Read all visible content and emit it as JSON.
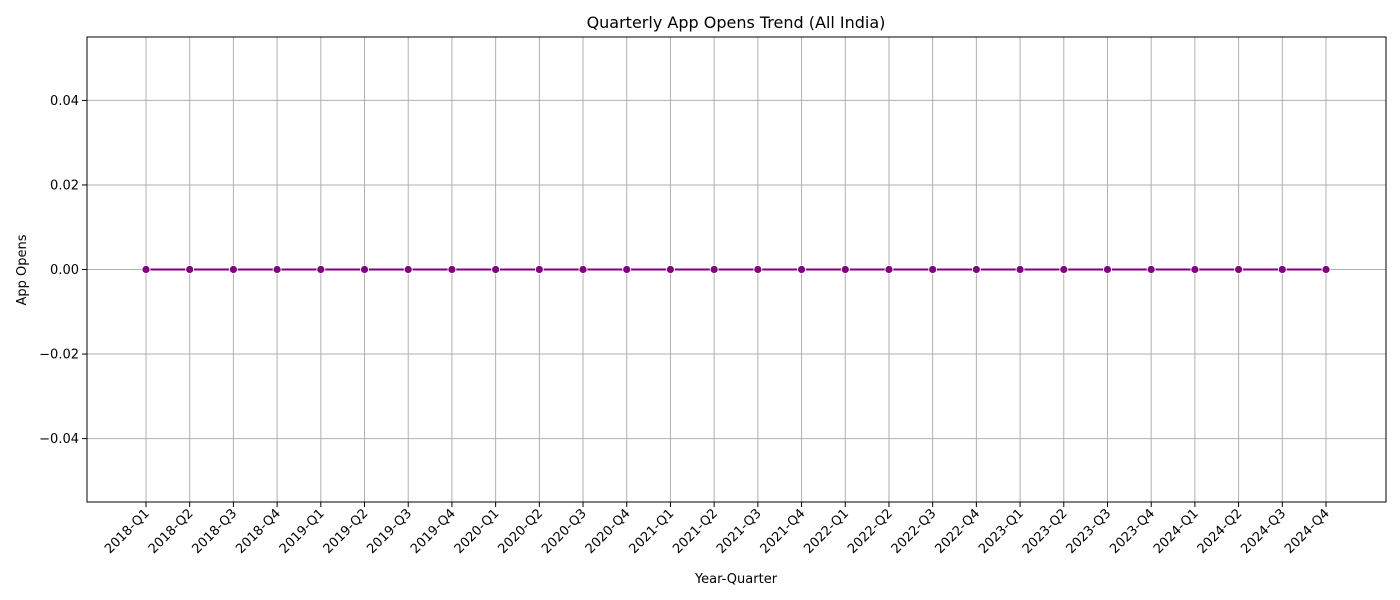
{
  "chart_data": {
    "type": "line",
    "title": "Quarterly App Opens Trend (All India)",
    "xlabel": "Year-Quarter",
    "ylabel": "App Opens",
    "categories": [
      "2018-Q1",
      "2018-Q2",
      "2018-Q3",
      "2018-Q4",
      "2019-Q1",
      "2019-Q2",
      "2019-Q3",
      "2019-Q4",
      "2020-Q1",
      "2020-Q2",
      "2020-Q3",
      "2020-Q4",
      "2021-Q1",
      "2021-Q2",
      "2021-Q3",
      "2021-Q4",
      "2022-Q1",
      "2022-Q2",
      "2022-Q3",
      "2022-Q4",
      "2023-Q1",
      "2023-Q2",
      "2023-Q3",
      "2023-Q4",
      "2024-Q1",
      "2024-Q2",
      "2024-Q3",
      "2024-Q4"
    ],
    "series": [
      {
        "values": [
          0,
          0,
          0,
          0,
          0,
          0,
          0,
          0,
          0,
          0,
          0,
          0,
          0,
          0,
          0,
          0,
          0,
          0,
          0,
          0,
          0,
          0,
          0,
          0,
          0,
          0,
          0,
          0
        ],
        "color": "#800080"
      }
    ],
    "ylim": [
      -0.055,
      0.055
    ],
    "yticks": [
      -0.04,
      -0.02,
      0.0,
      0.02,
      0.04
    ],
    "ytick_labels": [
      "−0.04",
      "−0.02",
      "0.00",
      "0.02",
      "0.04"
    ],
    "grid": true,
    "grid_color": "#b0b0b0",
    "marker": "circle"
  }
}
